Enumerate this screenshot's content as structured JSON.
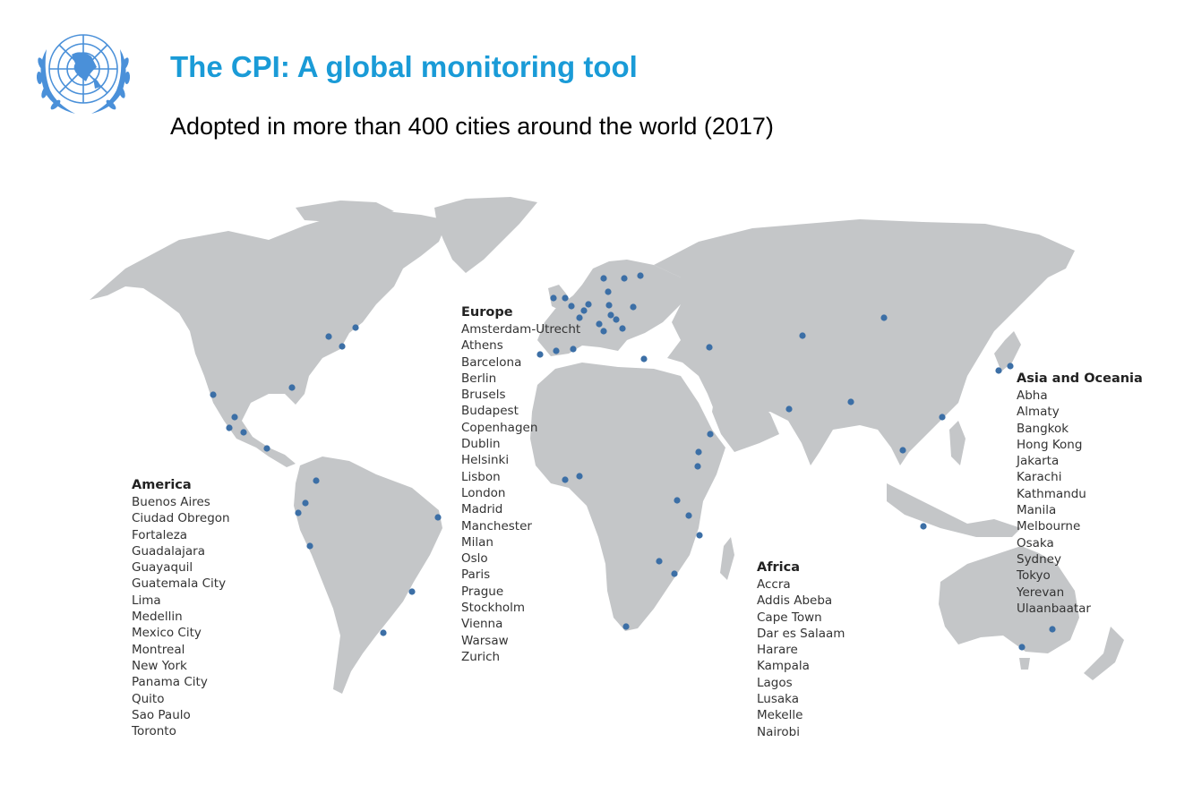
{
  "header": {
    "title": "The CPI: A global monitoring tool",
    "subtitle": "Adopted in more than 400 cities around the world (2017)"
  },
  "colors": {
    "title": "#1a9bd7",
    "logo": "#4a90d9",
    "land": "#c4c6c8",
    "marker": "#3c6fa6"
  },
  "regions": {
    "america": {
      "title": "America",
      "cities": [
        "Buenos Aires",
        "Ciudad Obregon",
        "Fortaleza",
        "Guadalajara",
        "Guayaquil",
        "Guatemala City",
        "Lima",
        "Medellin",
        "Mexico City",
        "Montreal",
        "New York",
        "Panama City",
        "Quito",
        "Sao Paulo",
        "Toronto"
      ]
    },
    "europe": {
      "title": "Europe",
      "cities": [
        "Amsterdam-Utrecht",
        "Athens",
        "Barcelona",
        "Berlin",
        "Brusels",
        "Budapest",
        "Copenhagen",
        "Dublin",
        "Helsinki",
        "Lisbon",
        "London",
        "Madrid",
        "Manchester",
        "Milan",
        "Oslo",
        "Paris",
        "Prague",
        "Stockholm",
        "Vienna",
        "Warsaw",
        "Zurich"
      ]
    },
    "africa": {
      "title": "Africa",
      "cities": [
        "Accra",
        "Addis Abeba",
        "Cape Town",
        "Dar es Salaam",
        "Harare",
        "Kampala",
        "Lagos",
        "Lusaka",
        "Mekelle",
        "Nairobi"
      ]
    },
    "asia": {
      "title": "Asia and Oceania",
      "cities": [
        "Abha",
        "Almaty",
        "Bangkok",
        "Hong Kong",
        "Jakarta",
        "Karachi",
        "Kathmandu",
        "Manila",
        "Melbourne",
        "Osaka",
        "Sydney",
        "Tokyo",
        "Yerevan",
        "Ulaanbaatar"
      ]
    }
  }
}
